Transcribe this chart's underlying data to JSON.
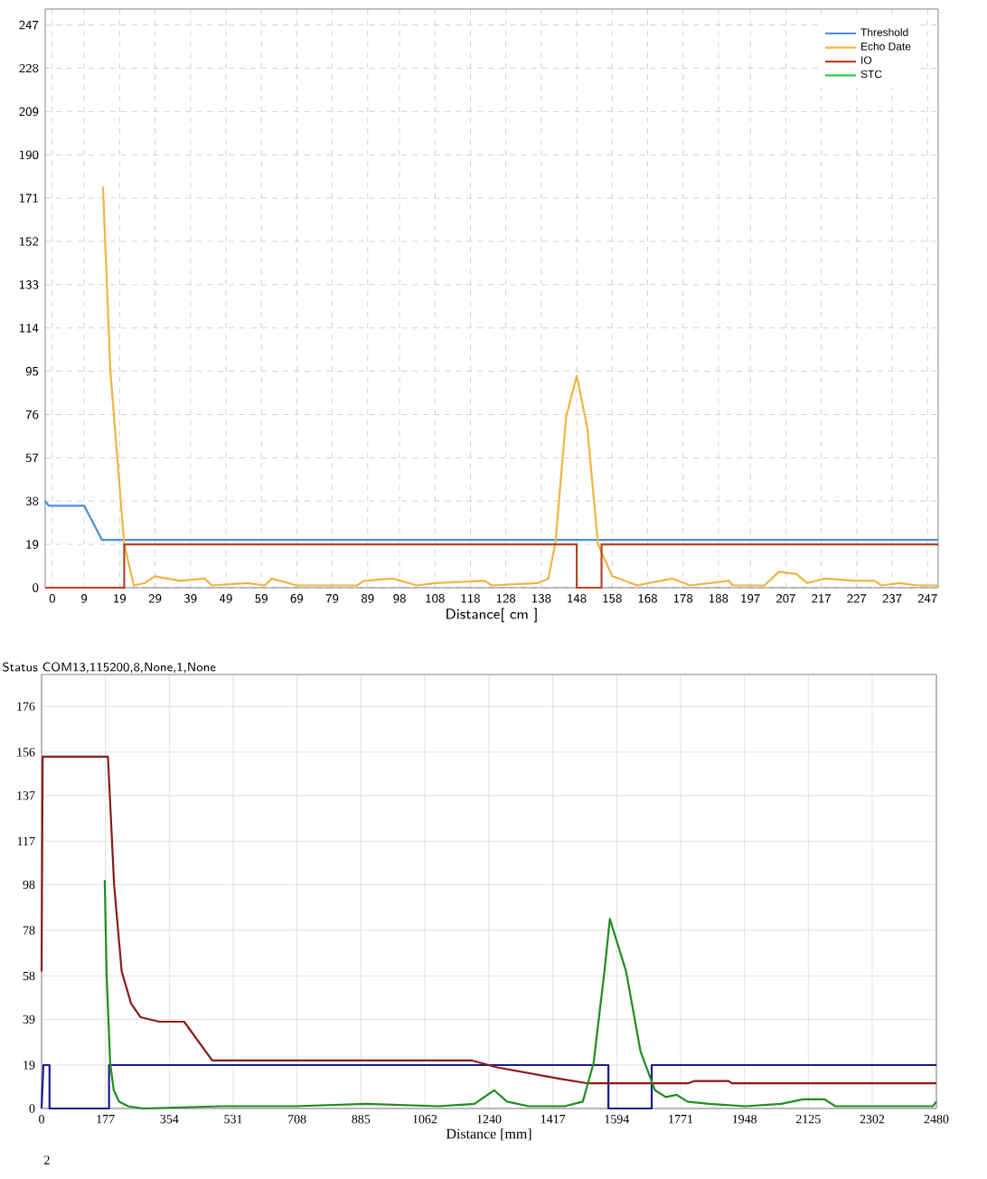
{
  "chart_data": [
    {
      "type": "line",
      "xlabel": "Distance[ cm ]",
      "xlim": [
        -2,
        250
      ],
      "ylim": [
        0,
        254
      ],
      "xticks": [
        0,
        9,
        19,
        29,
        39,
        49,
        59,
        69,
        79,
        89,
        98,
        108,
        118,
        128,
        138,
        148,
        158,
        168,
        178,
        188,
        197,
        207,
        217,
        227,
        237,
        247
      ],
      "yticks": [
        0,
        19,
        38,
        57,
        76,
        95,
        114,
        133,
        152,
        171,
        190,
        209,
        228,
        247
      ],
      "grid": true,
      "legend": "top right",
      "line_style": "solid",
      "annotations": [
        "Status  COM13,115200,8,None,1,None"
      ],
      "series": [
        {
          "name": "Threshold",
          "color": "#4a8fd8",
          "x": [
            -2,
            -1,
            9,
            14,
            250
          ],
          "values": [
            38,
            36,
            36,
            21,
            21
          ]
        },
        {
          "name": "Echo Date",
          "color": "#f0b440",
          "x": [
            14.3,
            16.4,
            20.3,
            23,
            26,
            29,
            36,
            43,
            45,
            55,
            60,
            62,
            69,
            86,
            88,
            96,
            103,
            108,
            122,
            124,
            137,
            140,
            142,
            145,
            148,
            151,
            154,
            158,
            160,
            165,
            175,
            180,
            191,
            192,
            201,
            205,
            210,
            213,
            218,
            227,
            232,
            234,
            239,
            244,
            250
          ],
          "values": [
            176,
            95,
            19,
            1,
            2,
            5,
            3,
            4,
            1,
            2,
            1,
            4,
            1,
            1,
            3,
            4,
            1,
            2,
            3,
            1,
            2,
            4,
            20,
            75,
            93,
            70,
            19,
            5,
            4,
            1,
            4,
            1,
            3,
            1,
            1,
            7,
            6,
            2,
            4,
            3,
            3,
            1,
            2,
            1,
            1
          ]
        },
        {
          "name": "IO",
          "color": "#b5432a",
          "x": [
            -2,
            20.3,
            20.3,
            148,
            148,
            155,
            155,
            250
          ],
          "values": [
            0,
            0,
            19,
            19,
            0,
            0,
            19,
            19
          ]
        },
        {
          "name": "STC",
          "color": "#2ecc40"
        }
      ]
    },
    {
      "type": "line",
      "xlabel": "Distance [mm]",
      "xlim": [
        0,
        2480
      ],
      "ylim": [
        0,
        190
      ],
      "xticks": [
        0,
        177,
        354,
        531,
        708,
        885,
        1062,
        1240,
        1417,
        1594,
        1771,
        1948,
        2125,
        2302,
        2480
      ],
      "yticks": [
        0,
        19,
        39,
        58,
        78,
        98,
        117,
        137,
        156,
        176
      ],
      "grid": true,
      "line_style": "solid",
      "annotations": [
        "2"
      ],
      "series": [
        {
          "color": "#1a1a8c",
          "x": [
            0,
            5,
            5,
            22,
            22,
            187,
            187,
            1571,
            1571,
            1691,
            1691,
            2480
          ],
          "values": [
            0,
            19,
            19,
            19,
            0,
            0,
            19,
            19,
            0,
            0,
            19,
            19
          ]
        },
        {
          "color": "#8b1a1a",
          "x": [
            0,
            3,
            184,
            201,
            222,
            248,
            274,
            326,
            395,
            473,
            1193,
            1262,
            1436,
            1514,
            1791,
            1809,
            1904,
            1913,
            2480
          ],
          "values": [
            60,
            154,
            154,
            98,
            60,
            46,
            40,
            38,
            38,
            21,
            21,
            18,
            13,
            11,
            11,
            12,
            12,
            11,
            11
          ]
        },
        {
          "color": "#1e8c1e",
          "x": [
            175,
            180,
            190,
            200,
            215,
            240,
            280,
            500,
            700,
            900,
            1100,
            1200,
            1254,
            1290,
            1350,
            1450,
            1500,
            1530,
            1560,
            1575,
            1620,
            1660,
            1700,
            1730,
            1760,
            1790,
            1850,
            1950,
            2050,
            2110,
            2170,
            2200,
            2400,
            2470,
            2480
          ],
          "values": [
            100,
            60,
            20,
            8,
            3,
            1,
            0,
            1,
            1,
            2,
            1,
            2,
            8,
            3,
            1,
            1,
            3,
            20,
            60,
            83,
            60,
            25,
            8,
            5,
            6,
            3,
            2,
            1,
            2,
            4,
            4,
            1,
            1,
            1,
            3
          ]
        }
      ]
    }
  ]
}
